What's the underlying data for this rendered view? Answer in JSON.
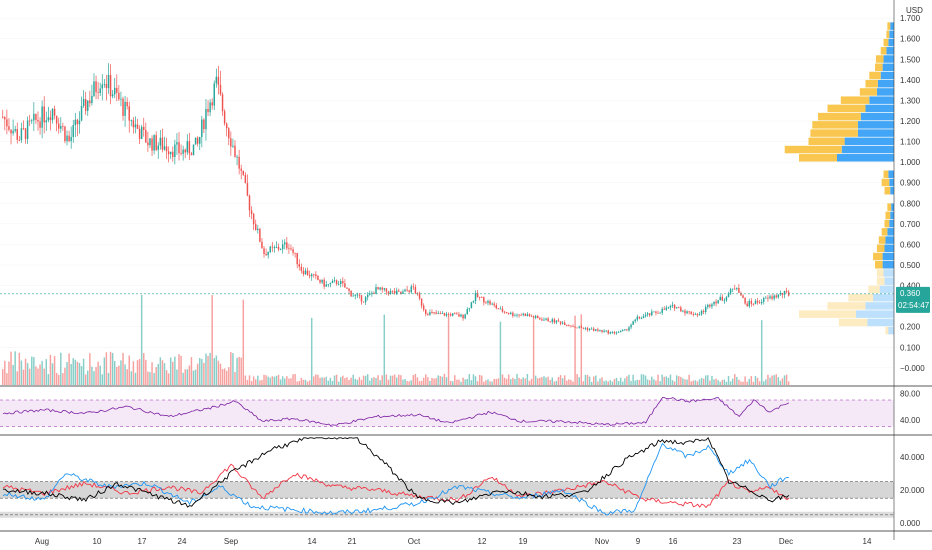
{
  "chart_data": {
    "type": "candlestick",
    "currency": "USD",
    "price_axis": {
      "ticks": [
        "1.700",
        "1.600",
        "1.500",
        "1.400",
        "1.300",
        "1.200",
        "1.100",
        "1.000",
        "0.900",
        "0.800",
        "0.700",
        "0.600",
        "0.500",
        "0.400",
        "0.300",
        "0.200",
        "0.100",
        "−0.000"
      ],
      "range": [
        -0.02,
        1.72
      ]
    },
    "last_price": {
      "value": "0.360",
      "countdown": "02:54:47",
      "color": "#26a69a"
    },
    "date_axis": [
      "Aug",
      "10",
      "17",
      "24",
      "Sep",
      "14",
      "21",
      "Oct",
      "12",
      "19",
      "Nov",
      "9",
      "16",
      "23",
      "Dec",
      "14"
    ],
    "price_series": [
      {
        "index": 0,
        "price": 1.22
      },
      {
        "index": 8,
        "price": 1.12
      },
      {
        "index": 16,
        "price": 1.2
      },
      {
        "index": 24,
        "price": 1.26
      },
      {
        "index": 32,
        "price": 1.1
      },
      {
        "index": 40,
        "price": 1.28
      },
      {
        "index": 48,
        "price": 1.42
      },
      {
        "index": 56,
        "price": 1.3
      },
      {
        "index": 62,
        "price": 1.2
      },
      {
        "index": 70,
        "price": 1.1
      },
      {
        "index": 78,
        "price": 1.08
      },
      {
        "index": 86,
        "price": 1.05
      },
      {
        "index": 94,
        "price": 1.08
      },
      {
        "index": 98,
        "price": 1.25
      },
      {
        "index": 103,
        "price": 1.38
      },
      {
        "index": 108,
        "price": 1.18
      },
      {
        "index": 114,
        "price": 0.98
      },
      {
        "index": 120,
        "price": 0.75
      },
      {
        "index": 126,
        "price": 0.56
      },
      {
        "index": 132,
        "price": 0.58
      },
      {
        "index": 138,
        "price": 0.6
      },
      {
        "index": 144,
        "price": 0.48
      },
      {
        "index": 150,
        "price": 0.44
      },
      {
        "index": 156,
        "price": 0.4
      },
      {
        "index": 162,
        "price": 0.42
      },
      {
        "index": 168,
        "price": 0.36
      },
      {
        "index": 174,
        "price": 0.33
      },
      {
        "index": 180,
        "price": 0.38
      },
      {
        "index": 186,
        "price": 0.37
      },
      {
        "index": 192,
        "price": 0.36
      },
      {
        "index": 198,
        "price": 0.39
      },
      {
        "index": 204,
        "price": 0.27
      },
      {
        "index": 210,
        "price": 0.26
      },
      {
        "index": 216,
        "price": 0.26
      },
      {
        "index": 222,
        "price": 0.25
      },
      {
        "index": 228,
        "price": 0.35
      },
      {
        "index": 234,
        "price": 0.32
      },
      {
        "index": 240,
        "price": 0.28
      },
      {
        "index": 246,
        "price": 0.26
      },
      {
        "index": 252,
        "price": 0.26
      },
      {
        "index": 258,
        "price": 0.24
      },
      {
        "index": 264,
        "price": 0.23
      },
      {
        "index": 270,
        "price": 0.22
      },
      {
        "index": 276,
        "price": 0.2
      },
      {
        "index": 282,
        "price": 0.19
      },
      {
        "index": 288,
        "price": 0.18
      },
      {
        "index": 294,
        "price": 0.17
      },
      {
        "index": 300,
        "price": 0.18
      },
      {
        "index": 306,
        "price": 0.24
      },
      {
        "index": 312,
        "price": 0.26
      },
      {
        "index": 318,
        "price": 0.28
      },
      {
        "index": 324,
        "price": 0.3
      },
      {
        "index": 330,
        "price": 0.27
      },
      {
        "index": 336,
        "price": 0.26
      },
      {
        "index": 342,
        "price": 0.32
      },
      {
        "index": 348,
        "price": 0.34
      },
      {
        "index": 354,
        "price": 0.4
      },
      {
        "index": 358,
        "price": 0.31
      },
      {
        "index": 364,
        "price": 0.32
      },
      {
        "index": 370,
        "price": 0.34
      },
      {
        "index": 376,
        "price": 0.36
      }
    ],
    "candles_total": 380,
    "volume_profile": [
      {
        "price": 1.66,
        "up": 4,
        "down": 3
      },
      {
        "price": 1.62,
        "up": 5,
        "down": 3
      },
      {
        "price": 1.58,
        "up": 6,
        "down": 5
      },
      {
        "price": 1.54,
        "up": 8,
        "down": 6
      },
      {
        "price": 1.5,
        "up": 11,
        "down": 8
      },
      {
        "price": 1.46,
        "up": 12,
        "down": 8
      },
      {
        "price": 1.42,
        "up": 14,
        "down": 12
      },
      {
        "price": 1.38,
        "up": 17,
        "down": 13
      },
      {
        "price": 1.34,
        "up": 18,
        "down": 18
      },
      {
        "price": 1.3,
        "up": 26,
        "down": 30
      },
      {
        "price": 1.26,
        "up": 30,
        "down": 40
      },
      {
        "price": 1.22,
        "up": 35,
        "down": 45
      },
      {
        "price": 1.18,
        "up": 38,
        "down": 48
      },
      {
        "price": 1.14,
        "up": 38,
        "down": 50
      },
      {
        "price": 1.1,
        "up": 52,
        "down": 38
      },
      {
        "price": 1.06,
        "up": 55,
        "down": 60
      },
      {
        "price": 1.02,
        "up": 60,
        "down": 40
      },
      {
        "price": 0.94,
        "up": 6,
        "down": 5
      },
      {
        "price": 0.9,
        "up": 5,
        "down": 8
      },
      {
        "price": 0.86,
        "up": 4,
        "down": 6
      },
      {
        "price": 0.78,
        "up": 3,
        "down": 4
      },
      {
        "price": 0.74,
        "up": 4,
        "down": 5
      },
      {
        "price": 0.7,
        "up": 5,
        "down": 5
      },
      {
        "price": 0.66,
        "up": 7,
        "down": 6
      },
      {
        "price": 0.62,
        "up": 9,
        "down": 7
      },
      {
        "price": 0.58,
        "up": 10,
        "down": 8
      },
      {
        "price": 0.54,
        "up": 12,
        "down": 10
      },
      {
        "price": 0.5,
        "up": 12,
        "down": 8
      },
      {
        "price": 0.46,
        "up": 11,
        "down": 7
      },
      {
        "price": 0.42,
        "up": 10,
        "down": 8
      },
      {
        "price": 0.38,
        "up": 15,
        "down": 12
      },
      {
        "price": 0.34,
        "up": 22,
        "down": 26
      },
      {
        "price": 0.3,
        "up": 30,
        "down": 40
      },
      {
        "price": 0.26,
        "up": 40,
        "down": 60
      },
      {
        "price": 0.22,
        "up": 28,
        "down": 30
      },
      {
        "price": 0.18,
        "up": 6,
        "down": 3
      }
    ],
    "rsi": {
      "ticks": [
        "80.00",
        "40.00"
      ],
      "range": [
        22,
        88
      ],
      "upper_band": 70,
      "lower_band": 30,
      "values": [
        {
          "index": 0,
          "v": 50
        },
        {
          "index": 20,
          "v": 55
        },
        {
          "index": 40,
          "v": 50
        },
        {
          "index": 60,
          "v": 60
        },
        {
          "index": 80,
          "v": 45
        },
        {
          "index": 100,
          "v": 58
        },
        {
          "index": 112,
          "v": 68
        },
        {
          "index": 125,
          "v": 38
        },
        {
          "index": 140,
          "v": 42
        },
        {
          "index": 160,
          "v": 32
        },
        {
          "index": 180,
          "v": 45
        },
        {
          "index": 200,
          "v": 48
        },
        {
          "index": 215,
          "v": 35
        },
        {
          "index": 235,
          "v": 52
        },
        {
          "index": 250,
          "v": 38
        },
        {
          "index": 270,
          "v": 38
        },
        {
          "index": 290,
          "v": 33
        },
        {
          "index": 310,
          "v": 36
        },
        {
          "index": 318,
          "v": 75
        },
        {
          "index": 330,
          "v": 68
        },
        {
          "index": 345,
          "v": 72
        },
        {
          "index": 355,
          "v": 45
        },
        {
          "index": 362,
          "v": 70
        },
        {
          "index": 370,
          "v": 52
        },
        {
          "index": 378,
          "v": 66
        }
      ]
    },
    "dmi": {
      "ticks": [
        "40.000",
        "20.000",
        "0.000"
      ],
      "range": [
        -3,
        52
      ],
      "band_low": 15,
      "band_high": 25,
      "lower_line": 5,
      "series": [
        {
          "color": "#f23645",
          "values": [
            {
              "index": 0,
              "v": 22
            },
            {
              "index": 20,
              "v": 18
            },
            {
              "index": 40,
              "v": 24
            },
            {
              "index": 60,
              "v": 18
            },
            {
              "index": 80,
              "v": 22
            },
            {
              "index": 95,
              "v": 18
            },
            {
              "index": 110,
              "v": 35
            },
            {
              "index": 125,
              "v": 15
            },
            {
              "index": 140,
              "v": 30
            },
            {
              "index": 160,
              "v": 22
            },
            {
              "index": 180,
              "v": 20
            },
            {
              "index": 200,
              "v": 16
            },
            {
              "index": 220,
              "v": 14
            },
            {
              "index": 235,
              "v": 28
            },
            {
              "index": 250,
              "v": 16
            },
            {
              "index": 270,
              "v": 20
            },
            {
              "index": 290,
              "v": 25
            },
            {
              "index": 310,
              "v": 14
            },
            {
              "index": 325,
              "v": 12
            },
            {
              "index": 340,
              "v": 10
            },
            {
              "index": 350,
              "v": 25
            },
            {
              "index": 360,
              "v": 18
            },
            {
              "index": 370,
              "v": 22
            },
            {
              "index": 378,
              "v": 14
            }
          ]
        },
        {
          "color": "#2196f3",
          "values": [
            {
              "index": 0,
              "v": 18
            },
            {
              "index": 20,
              "v": 14
            },
            {
              "index": 30,
              "v": 30
            },
            {
              "index": 50,
              "v": 22
            },
            {
              "index": 70,
              "v": 24
            },
            {
              "index": 90,
              "v": 12
            },
            {
              "index": 105,
              "v": 22
            },
            {
              "index": 120,
              "v": 10
            },
            {
              "index": 140,
              "v": 8
            },
            {
              "index": 160,
              "v": 6
            },
            {
              "index": 180,
              "v": 8
            },
            {
              "index": 200,
              "v": 12
            },
            {
              "index": 220,
              "v": 22
            },
            {
              "index": 235,
              "v": 18
            },
            {
              "index": 250,
              "v": 15
            },
            {
              "index": 270,
              "v": 20
            },
            {
              "index": 290,
              "v": 6
            },
            {
              "index": 305,
              "v": 8
            },
            {
              "index": 318,
              "v": 48
            },
            {
              "index": 330,
              "v": 40
            },
            {
              "index": 340,
              "v": 46
            },
            {
              "index": 350,
              "v": 30
            },
            {
              "index": 360,
              "v": 38
            },
            {
              "index": 370,
              "v": 22
            },
            {
              "index": 378,
              "v": 28
            }
          ]
        },
        {
          "color": "#000000",
          "values": [
            {
              "index": 0,
              "v": 20
            },
            {
              "index": 20,
              "v": 18
            },
            {
              "index": 40,
              "v": 14
            },
            {
              "index": 55,
              "v": 24
            },
            {
              "index": 70,
              "v": 18
            },
            {
              "index": 90,
              "v": 10
            },
            {
              "index": 110,
              "v": 30
            },
            {
              "index": 130,
              "v": 45
            },
            {
              "index": 150,
              "v": 52
            },
            {
              "index": 170,
              "v": 52
            },
            {
              "index": 185,
              "v": 35
            },
            {
              "index": 200,
              "v": 15
            },
            {
              "index": 220,
              "v": 12
            },
            {
              "index": 240,
              "v": 20
            },
            {
              "index": 260,
              "v": 16
            },
            {
              "index": 280,
              "v": 18
            },
            {
              "index": 300,
              "v": 38
            },
            {
              "index": 318,
              "v": 50
            },
            {
              "index": 330,
              "v": 48
            },
            {
              "index": 340,
              "v": 52
            },
            {
              "index": 350,
              "v": 25
            },
            {
              "index": 360,
              "v": 20
            },
            {
              "index": 370,
              "v": 14
            },
            {
              "index": 378,
              "v": 16
            }
          ]
        }
      ]
    }
  }
}
